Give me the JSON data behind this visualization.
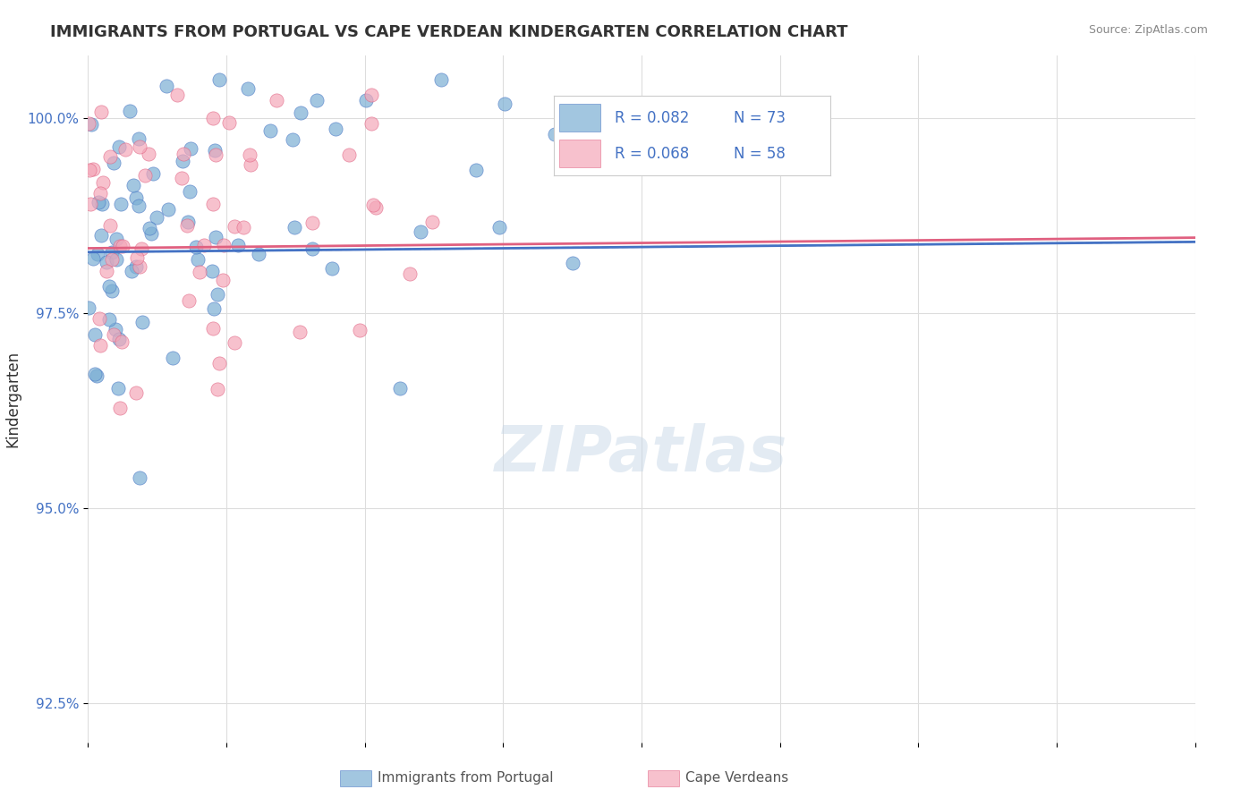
{
  "title": "IMMIGRANTS FROM PORTUGAL VS CAPE VERDEAN KINDERGARTEN CORRELATION CHART",
  "source": "Source: ZipAtlas.com",
  "ylabel": "Kindergarten",
  "yticks": [
    92.5,
    95.0,
    97.5,
    100.0
  ],
  "ytick_labels": [
    "92.5%",
    "95.0%",
    "97.5%",
    "100.0%"
  ],
  "xlim": [
    0.0,
    40.0
  ],
  "ylim": [
    92.0,
    100.8
  ],
  "legend_r1": "R = 0.082",
  "legend_n1": "N = 73",
  "legend_r2": "R = 0.068",
  "legend_n2": "N = 58",
  "color_blue": "#7bafd4",
  "color_pink": "#f4a7b9",
  "color_blue_dark": "#4472c4",
  "color_pink_dark": "#e06080",
  "color_text_blue": "#4472c4",
  "background_color": "#ffffff",
  "watermark": "ZIPatlas",
  "title_fontsize": 13,
  "seed": 42,
  "n_blue": 73,
  "n_pink": 58,
  "R_blue": 0.082,
  "R_pink": 0.068
}
